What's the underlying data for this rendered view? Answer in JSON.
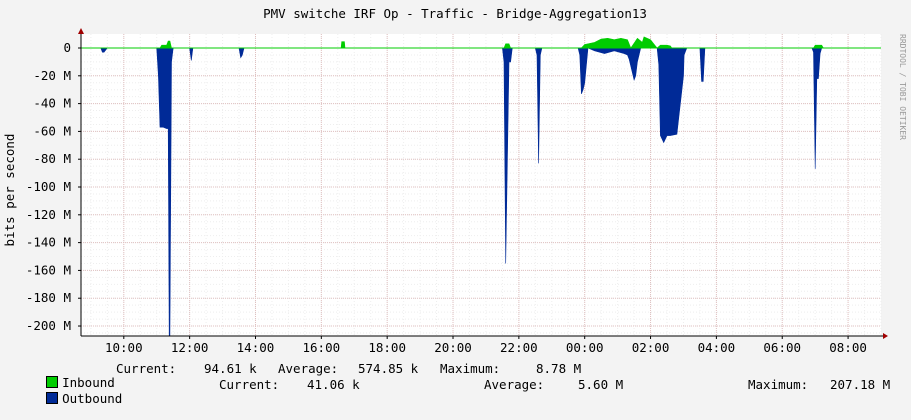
{
  "chart_data": {
    "type": "area",
    "title": "PMV switche IRF Op - Traffic - Bridge-Aggregation13",
    "ylabel": "bits per second",
    "watermark": "RRDTOOL / TOBI OETIKER",
    "ylim": [
      -207180000,
      0
    ],
    "y_ticks": [
      {
        "label": "0",
        "value": 0
      },
      {
        "label": "-20 M",
        "value": -20000000
      },
      {
        "label": "-40 M",
        "value": -40000000
      },
      {
        "label": "-60 M",
        "value": -60000000
      },
      {
        "label": "-80 M",
        "value": -80000000
      },
      {
        "label": "-100 M",
        "value": -100000000
      },
      {
        "label": "-120 M",
        "value": -120000000
      },
      {
        "label": "-140 M",
        "value": -140000000
      },
      {
        "label": "-160 M",
        "value": -160000000
      },
      {
        "label": "-180 M",
        "value": -180000000
      },
      {
        "label": "-200 M",
        "value": -200000000
      }
    ],
    "x_ticks": [
      "10:00",
      "12:00",
      "14:00",
      "16:00",
      "18:00",
      "20:00",
      "22:00",
      "00:00",
      "02:00",
      "04:00",
      "06:00",
      "08:00"
    ],
    "x_range_hours": [
      8.7,
      33.0
    ],
    "grid": true,
    "colors": {
      "inbound": "#00cc00",
      "outbound": "#002a97",
      "grid": "#e0c0c0",
      "axis": "#000000",
      "background": "#ffffff",
      "canvas": "#f3f3f3"
    },
    "series": [
      {
        "name": "Inbound",
        "color": "#00cc00",
        "t_hours": [
          8.7,
          11.1,
          11.15,
          11.3,
          11.35,
          11.4,
          11.45,
          16.6,
          16.62,
          16.7,
          16.72,
          21.55,
          21.6,
          21.7,
          21.75,
          23.9,
          24.0,
          24.3,
          24.5,
          24.7,
          24.9,
          25.1,
          25.3,
          25.4,
          25.6,
          25.75,
          25.8,
          26.0,
          26.2,
          26.3,
          26.45,
          26.5,
          26.6,
          26.65,
          30.95,
          31.0,
          31.2,
          31.25,
          33.0
        ],
        "values": [
          0,
          0,
          2000000,
          2000000,
          5000000,
          5000000,
          0,
          0,
          4500000,
          4500000,
          0,
          0,
          3000000,
          3000000,
          0,
          0,
          2500000,
          4000000,
          6500000,
          7000000,
          6000000,
          7000000,
          6000000,
          0,
          7000000,
          4000000,
          8000000,
          6000000,
          0,
          2000000,
          2000000,
          2000000,
          1500000,
          0,
          0,
          2000000,
          2000000,
          0,
          0
        ]
      },
      {
        "name": "Outbound",
        "color": "#002a97",
        "t_hours": [
          8.7,
          9.3,
          9.35,
          9.4,
          9.5,
          11.0,
          11.05,
          11.1,
          11.2,
          11.3,
          11.35,
          11.38,
          11.4,
          11.45,
          11.5,
          12.0,
          12.05,
          12.1,
          13.5,
          13.55,
          13.6,
          13.65,
          21.5,
          21.55,
          21.6,
          21.7,
          21.75,
          21.8,
          22.5,
          22.55,
          22.6,
          22.65,
          22.7,
          23.8,
          23.85,
          23.9,
          23.95,
          24.0,
          24.1,
          24.3,
          24.6,
          24.9,
          25.2,
          25.3,
          25.35,
          25.5,
          25.55,
          25.6,
          25.7,
          26.2,
          26.25,
          26.3,
          26.4,
          26.5,
          26.6,
          26.8,
          27.0,
          27.02,
          27.1,
          27.12,
          27.5,
          27.55,
          27.6,
          27.65,
          30.9,
          30.95,
          31.0,
          31.05,
          31.1,
          31.15,
          31.2,
          33.0
        ],
        "values": [
          0,
          0,
          -3000000,
          -3000000,
          0,
          0,
          -20000000,
          -57000000,
          -57000000,
          -58000000,
          -58000000,
          -207180000,
          -207180000,
          -10000000,
          0,
          0,
          -9000000,
          0,
          0,
          -7000000,
          -5000000,
          0,
          0,
          -10000000,
          -155000000,
          -10000000,
          -10000000,
          0,
          0,
          -5000000,
          -83000000,
          -5000000,
          0,
          0,
          -5000000,
          -33000000,
          -30000000,
          -25000000,
          0,
          -2000000,
          -4000000,
          -2000000,
          -4000000,
          -5000000,
          -8000000,
          -23000000,
          -20000000,
          -10000000,
          0,
          0,
          -12000000,
          -63000000,
          -68000000,
          -63000000,
          -63000000,
          -62000000,
          -20000000,
          -5000000,
          0,
          0,
          0,
          -24000000,
          -24000000,
          0,
          0,
          -3000000,
          -87000000,
          -22000000,
          -22000000,
          -4000000,
          0,
          0
        ]
      }
    ],
    "legend": [
      {
        "name": "Inbound",
        "current_label": "Current:",
        "current": "94.61 k",
        "average_label": "Average:",
        "average": "574.85 k",
        "maximum_label": "Maximum:",
        "maximum": "8.78 M"
      },
      {
        "name": "Outbound",
        "current_label": "Current:",
        "current": "41.06 k",
        "average_label": "Average:",
        "average": "5.60 M",
        "maximum_label": "Maximum:",
        "maximum": "207.18 M"
      }
    ]
  }
}
